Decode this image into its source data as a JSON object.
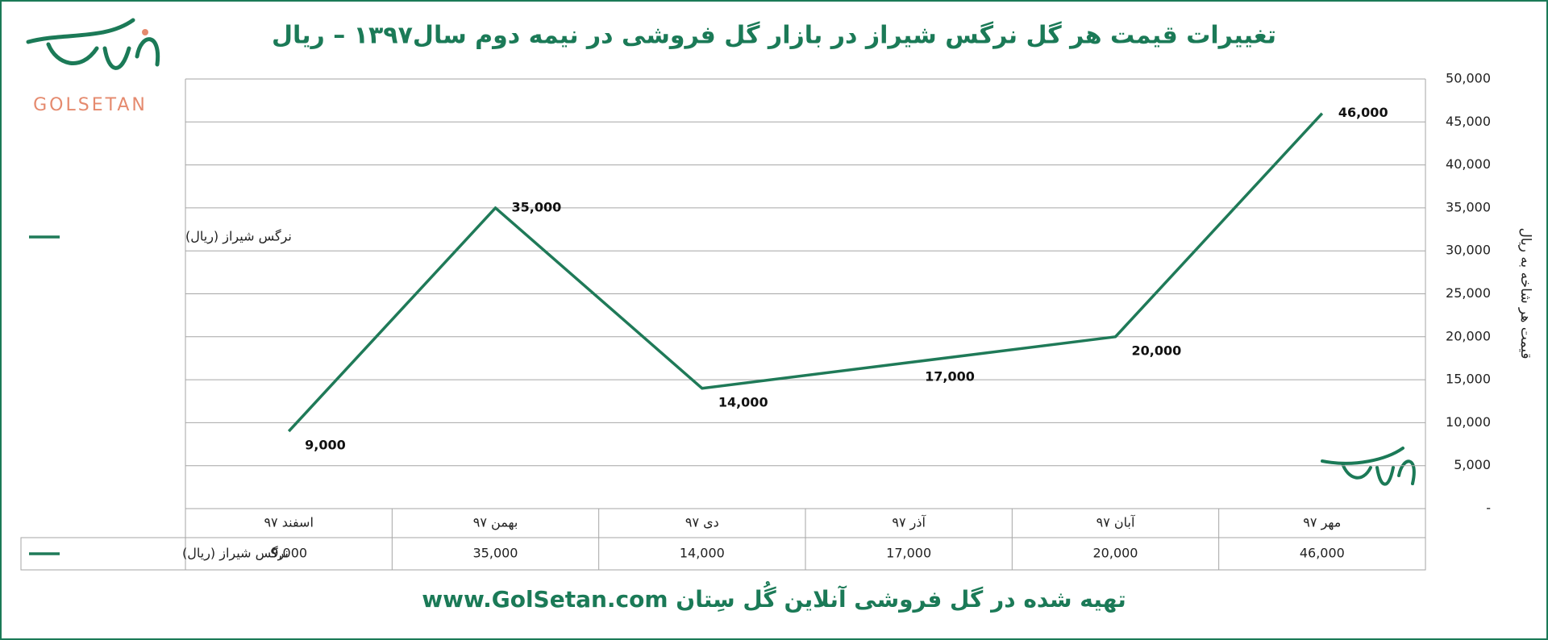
{
  "logo": {
    "name": "GOLSETAN"
  },
  "chart_data": {
    "type": "line",
    "title": "تغییرات قیمت هر گل نرگس شیراز در بازار گل فروشی در نیمه دوم سال۱۳۹۷ – ریال",
    "footer": "تهیه شده در گل فروشی آنلاین گُل سِتان www.GolSetan.com",
    "y_label": "قیمت هر شاخه به ریال",
    "categories": [
      "اسفند ۹۷",
      "بهمن ۹۷",
      "دی ۹۷",
      "آذر ۹۷",
      "آبان ۹۷",
      "مهر ۹۷"
    ],
    "series": [
      {
        "name": "نرگس شیراز (ریال)",
        "color": "#1f7a58",
        "values": [
          9000,
          35000,
          14000,
          17000,
          20000,
          46000
        ],
        "value_labels": [
          "9,000",
          "35,000",
          "14,000",
          "17,000",
          "20,000",
          "46,000"
        ]
      }
    ],
    "ylim": [
      0,
      50000
    ],
    "yticks": [
      {
        "value": 0,
        "label": "-"
      },
      {
        "value": 5000,
        "label": "5,000"
      },
      {
        "value": 10000,
        "label": "10,000"
      },
      {
        "value": 15000,
        "label": "15,000"
      },
      {
        "value": 20000,
        "label": "20,000"
      },
      {
        "value": 25000,
        "label": "25,000"
      },
      {
        "value": 30000,
        "label": "30,000"
      },
      {
        "value": 35000,
        "label": "35,000"
      },
      {
        "value": 40000,
        "label": "40,000"
      },
      {
        "value": 45000,
        "label": "45,000"
      },
      {
        "value": 50000,
        "label": "50,000"
      }
    ],
    "grid": true
  }
}
